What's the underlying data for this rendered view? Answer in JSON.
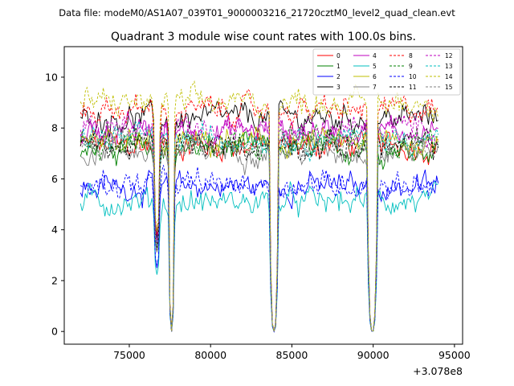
{
  "header": {
    "suptitle": "Data file: modeM0/AS1A07_039T01_9000003216_21720cztM0_level2_quad_clean.evt"
  },
  "chart_data": {
    "type": "line",
    "title": "Quadrant 3 module wise count rates with 100.0s bins.",
    "xlabel": "",
    "ylabel": "",
    "offset_label": "+3.078e8",
    "xlim": [
      71000,
      95500
    ],
    "ylim": [
      -0.5,
      11.2
    ],
    "x_ticks": [
      75000,
      80000,
      85000,
      90000,
      95000
    ],
    "x_tick_labels": [
      "75000",
      "80000",
      "85000",
      "90000",
      "95000"
    ],
    "y_ticks": [
      0,
      2,
      4,
      6,
      8,
      10
    ],
    "y_tick_labels": [
      "0",
      "2",
      "4",
      "6",
      "8",
      "10"
    ],
    "segments": [
      [
        72000,
        76500
      ],
      [
        76900,
        77400
      ],
      [
        77800,
        83600
      ],
      [
        84200,
        89600
      ],
      [
        90300,
        94000
      ]
    ],
    "dips": [
      {
        "x": 76700,
        "depth": 3.5
      },
      {
        "x": 77600,
        "depth": 0.0
      },
      {
        "x": 83900,
        "depth": 0.0
      },
      {
        "x": 89950,
        "depth": 0.0
      }
    ],
    "legend": {
      "placement": "top-right",
      "columns": 4
    },
    "series": [
      {
        "name": "0",
        "color": "#ff0000",
        "dash": "solid",
        "mean": 7.3
      },
      {
        "name": "1",
        "color": "#008000",
        "dash": "solid",
        "mean": 7.2
      },
      {
        "name": "2",
        "color": "#0000ff",
        "dash": "solid",
        "mean": 5.7
      },
      {
        "name": "3",
        "color": "#000000",
        "dash": "solid",
        "mean": 8.4
      },
      {
        "name": "4",
        "color": "#bf00bf",
        "dash": "solid",
        "mean": 7.9
      },
      {
        "name": "5",
        "color": "#00bfbf",
        "dash": "solid",
        "mean": 5.1
      },
      {
        "name": "6",
        "color": "#bfbf00",
        "dash": "solid",
        "mean": 7.4
      },
      {
        "name": "7",
        "color": "#808080",
        "dash": "solid",
        "mean": 7.1
      },
      {
        "name": "8",
        "color": "#ff0000",
        "dash": "dashed",
        "mean": 8.7
      },
      {
        "name": "9",
        "color": "#008000",
        "dash": "dashed",
        "mean": 7.5
      },
      {
        "name": "10",
        "color": "#0000ff",
        "dash": "dashed",
        "mean": 5.8
      },
      {
        "name": "11",
        "color": "#000000",
        "dash": "dashed",
        "mean": 7.3
      },
      {
        "name": "12",
        "color": "#bf00bf",
        "dash": "dashed",
        "mean": 8.0
      },
      {
        "name": "13",
        "color": "#00bfbf",
        "dash": "dashed",
        "mean": 7.6
      },
      {
        "name": "14",
        "color": "#bfbf00",
        "dash": "dashed",
        "mean": 9.0
      },
      {
        "name": "15",
        "color": "#808080",
        "dash": "dashed",
        "mean": 7.4
      }
    ]
  }
}
